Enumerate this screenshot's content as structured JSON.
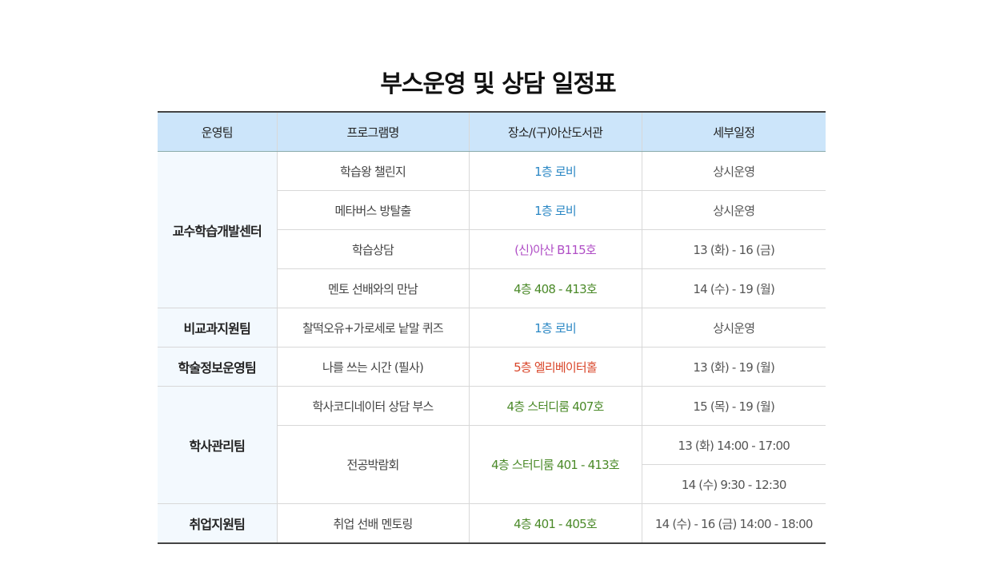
{
  "title": "부스운영 및 상담 일정표",
  "table": {
    "headers": [
      "운영팀",
      "프로그램명",
      "장소/(구)아산도서관",
      "세부일정"
    ],
    "groups": [
      {
        "team": "교수학습개발센터",
        "rows": [
          {
            "program": "학습왕 챌린지",
            "location": "1층 로비",
            "location_color": "#2a87c4",
            "schedule": [
              "상시운영"
            ]
          },
          {
            "program": "메타버스 방탈출",
            "location": "1층 로비",
            "location_color": "#2a87c4",
            "schedule": [
              "상시운영"
            ]
          },
          {
            "program": "학습상담",
            "location": "(신)아산 B115호",
            "location_color": "#b04fc6",
            "schedule": [
              "13 (화) - 16 (금)"
            ]
          },
          {
            "program": "멘토 선배와의 만남",
            "location": "4층 408 - 413호",
            "location_color": "#4b8a29",
            "schedule": [
              "14 (수) - 19 (월)"
            ]
          }
        ]
      },
      {
        "team": "비교과지원팀",
        "rows": [
          {
            "program": "찰떡오유+가로세로 낱말 퀴즈",
            "location": "1층 로비",
            "location_color": "#2a87c4",
            "schedule": [
              "상시운영"
            ]
          }
        ]
      },
      {
        "team": "학술정보운영팀",
        "rows": [
          {
            "program": "나를 쓰는 시간 (필사)",
            "location": "5층 엘리베이터홀",
            "location_color": "#d9462a",
            "schedule": [
              "13 (화) - 19 (월)"
            ]
          }
        ]
      },
      {
        "team": "학사관리팀",
        "rows": [
          {
            "program": "학사코디네이터 상담 부스",
            "location": "4층 스터디룸 407호",
            "location_color": "#4b8a29",
            "schedule": [
              "15 (목) - 19 (월)"
            ]
          },
          {
            "program": "전공박람회",
            "location": "4층 스터디룸 401 - 413호",
            "location_color": "#4b8a29",
            "schedule": [
              "13 (화) 14:00 - 17:00",
              "14 (수) 9:30 - 12:30"
            ]
          }
        ]
      },
      {
        "team": "취업지원팀",
        "rows": [
          {
            "program": "취업 선배 멘토링",
            "location": "4층 401 - 405호",
            "location_color": "#4b8a29",
            "schedule": [
              "14 (수) - 16 (금) 14:00 - 18:00"
            ]
          }
        ]
      }
    ]
  }
}
